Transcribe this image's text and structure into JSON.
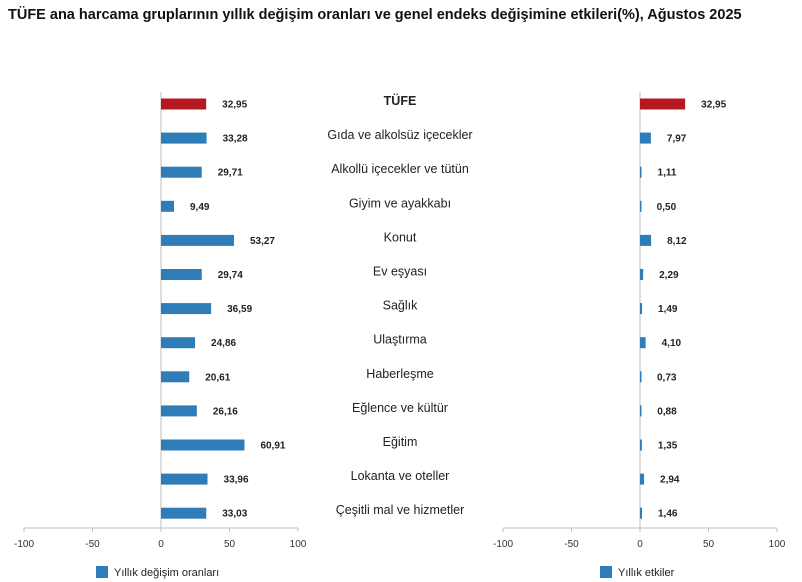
{
  "title": "TÜFE ana harcama gruplarının yıllık değişim oranları ve genel endeks değişimine etkileri(%), Ağustos 2025",
  "colors": {
    "total": "#B3191E",
    "series": "#2E7DB9",
    "axis": "#BFBFBF"
  },
  "chart_data": [
    {
      "type": "bar",
      "orientation": "horizontal",
      "categories": [
        "TÜFE",
        "Gıda ve alkolsüz içecekler",
        "Alkollü içecekler ve tütün",
        "Giyim ve ayakkabı",
        "Konut",
        "Ev eşyası",
        "Sağlık",
        "Ulaştırma",
        "Haberleşme",
        "Eğlence ve kültür",
        "Eğitim",
        "Lokanta ve oteller",
        "Çeşitli mal ve hizmetler"
      ],
      "series": [
        {
          "name": "Yıllık değişim oranları",
          "values": [
            32.95,
            33.28,
            29.71,
            9.49,
            53.27,
            29.74,
            36.59,
            24.86,
            20.61,
            26.16,
            60.91,
            33.96,
            33.03
          ],
          "labels": [
            "32,95",
            "33,28",
            "29,71",
            "9,49",
            "53,27",
            "29,74",
            "36,59",
            "24,86",
            "20,61",
            "26,16",
            "60,91",
            "33,96",
            "33,03"
          ]
        }
      ],
      "xlim": [
        -100,
        100
      ],
      "xticks": [
        -100,
        -50,
        0,
        50,
        100
      ],
      "xtick_labels": [
        "-100",
        "-50",
        "0",
        "50",
        "100"
      ],
      "legend_position": "bottom-left",
      "highlight_first": true
    },
    {
      "type": "bar",
      "orientation": "horizontal",
      "categories": [
        "TÜFE",
        "Gıda ve alkolsüz içecekler",
        "Alkollü içecekler ve tütün",
        "Giyim ve ayakkabı",
        "Konut",
        "Ev eşyası",
        "Sağlık",
        "Ulaştırma",
        "Haberleşme",
        "Eğlence ve kültür",
        "Eğitim",
        "Lokanta ve oteller",
        "Çeşitli mal ve hizmetler"
      ],
      "series": [
        {
          "name": "Yıllık etkiler",
          "values": [
            32.95,
            7.97,
            1.11,
            0.5,
            8.12,
            2.29,
            1.49,
            4.1,
            0.73,
            0.88,
            1.35,
            2.94,
            1.46
          ],
          "labels": [
            "32,95",
            "7,97",
            "1,11",
            "0,50",
            "8,12",
            "2,29",
            "1,49",
            "4,10",
            "0,73",
            "0,88",
            "1,35",
            "2,94",
            "1,46"
          ]
        }
      ],
      "xlim": [
        -100,
        100
      ],
      "xticks": [
        -100,
        -50,
        0,
        50,
        100
      ],
      "xtick_labels": [
        "-100",
        "-50",
        "0",
        "50",
        "100"
      ],
      "legend_position": "bottom-left",
      "highlight_first": true
    }
  ]
}
